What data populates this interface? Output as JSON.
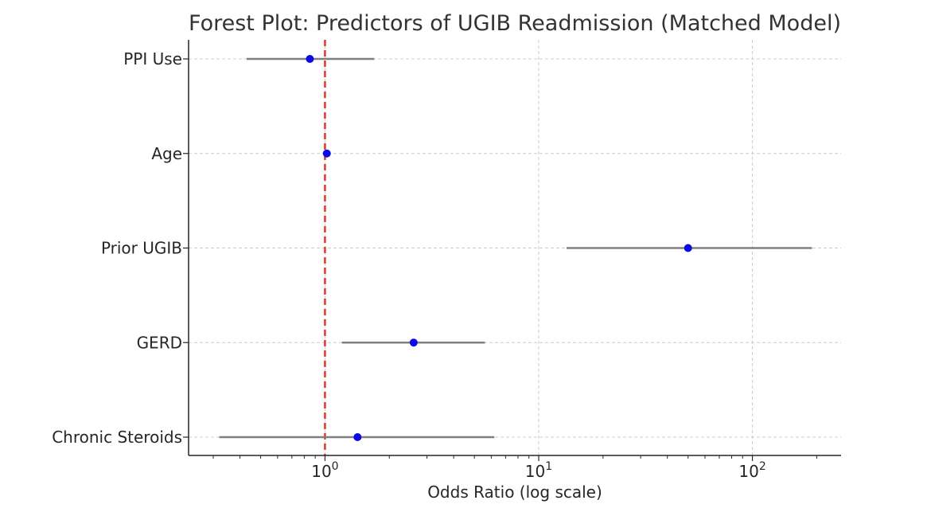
{
  "chart_data": {
    "type": "forest",
    "title": "Forest Plot: Predictors of UGIB Readmission (Matched Model)",
    "xlabel": "Odds Ratio (log scale)",
    "ylabel": "",
    "x_scale": "log",
    "xlim": [
      0.23,
      260
    ],
    "x_ticks": [
      {
        "value": 1,
        "base": "10",
        "exp": "0"
      },
      {
        "value": 10,
        "base": "10",
        "exp": "1"
      },
      {
        "value": 100,
        "base": "10",
        "exp": "2"
      }
    ],
    "reference_line": {
      "value": 1,
      "color": "#e0392b",
      "style": "dashed"
    },
    "grid": true,
    "point_color": "#0a0ae6",
    "ci_color": "#808080",
    "rows": [
      {
        "label": "PPI Use",
        "or": 0.85,
        "ci_low": 0.43,
        "ci_high": 1.7
      },
      {
        "label": "Age",
        "or": 1.02,
        "ci_low": 1.0,
        "ci_high": 1.04
      },
      {
        "label": "Prior UGIB",
        "or": 50,
        "ci_low": 13.5,
        "ci_high": 190
      },
      {
        "label": "GERD",
        "or": 2.6,
        "ci_low": 1.2,
        "ci_high": 5.6
      },
      {
        "label": "Chronic Steroids",
        "or": 1.42,
        "ci_low": 0.32,
        "ci_high": 6.2
      }
    ]
  }
}
